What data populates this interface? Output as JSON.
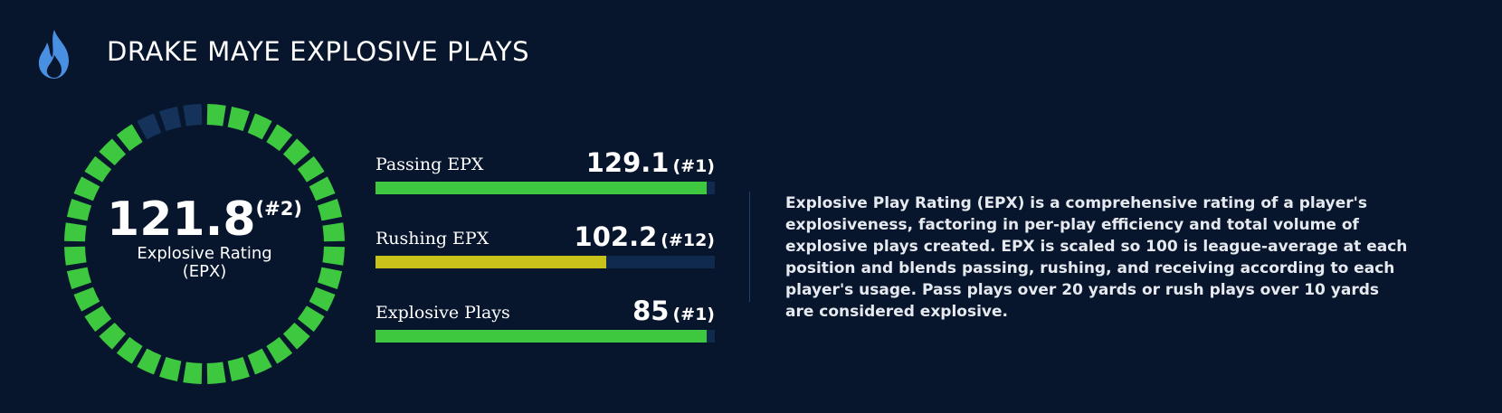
{
  "header": {
    "icon": "flame-icon",
    "title": "DRAKE MAYE EXPLOSIVE PLAYS"
  },
  "gauge": {
    "value": "121.8",
    "rank": "(#2)",
    "label_line1": "Explosive Rating",
    "label_line2": "(EPX)",
    "segments_total": 36,
    "segments_filled": 33,
    "filled_color": "#3dc840",
    "empty_color": "#15335a"
  },
  "metrics": [
    {
      "label": "Passing EPX",
      "value": "129.1",
      "rank": "(#1)",
      "fill_fraction": 0.975,
      "color": "#3dc840"
    },
    {
      "label": "Rushing EPX",
      "value": "102.2",
      "rank": "(#12)",
      "fill_fraction": 0.68,
      "color": "#c8c21a"
    },
    {
      "label": "Explosive Plays",
      "value": "85",
      "rank": "(#1)",
      "fill_fraction": 0.975,
      "color": "#3dc840"
    }
  ],
  "description": "Explosive Play Rating (EPX) is a comprehensive rating of a player's explosiveness, factoring in per-play efficiency and total volume of explosive plays created. EPX is scaled so 100 is league-average at each position and blends passing, rushing, and receiving according to each player's usage. Pass plays over 20 yards or rush plays over 10 yards are considered explosive.",
  "colors": {
    "background": "#07162d",
    "accent_blue": "#4a90e2",
    "bar_track": "#0f2a4c"
  }
}
